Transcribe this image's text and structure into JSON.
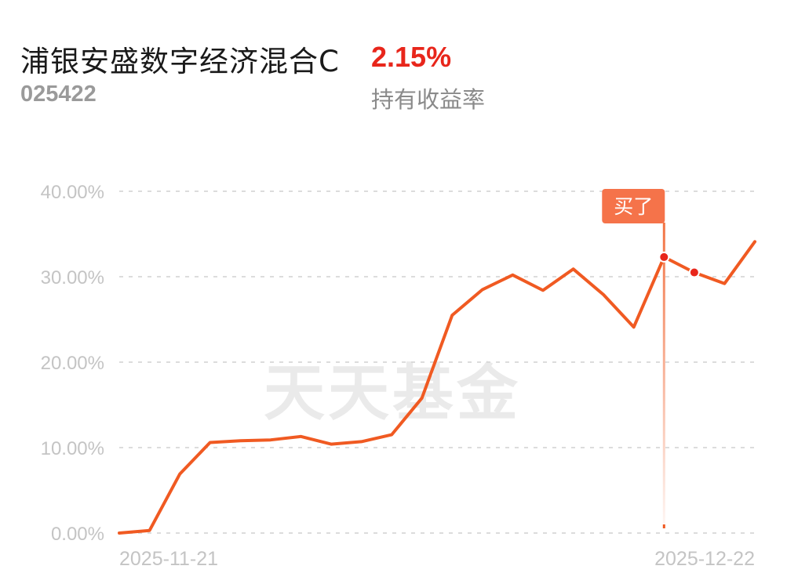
{
  "header": {
    "fund_name": "浦银安盛数字经济混合C",
    "fund_code": "025422",
    "holding_return": "2.15%",
    "holding_return_label": "持有收益率"
  },
  "watermark": "天天基金",
  "colors": {
    "line": "#f05a22",
    "return_red": "#e8261b",
    "marker_bg": "#f5734a"
  },
  "chart_data": {
    "type": "line",
    "title": "",
    "xlabel": "",
    "ylabel": "",
    "ylim": [
      0,
      40
    ],
    "yticks": [
      "0.00%",
      "10.00%",
      "20.00%",
      "30.00%",
      "40.00%"
    ],
    "grid": true,
    "x_labels": [
      "2025-11-21",
      "2025-12-22"
    ],
    "series": [
      {
        "values": [
          0.0,
          0.3,
          6.9,
          10.6,
          10.8,
          10.9,
          11.3,
          10.4,
          10.7,
          11.5,
          15.8,
          25.5,
          28.5,
          30.2,
          28.4,
          30.9,
          27.9,
          24.1,
          32.3,
          30.5,
          29.2,
          34.1
        ]
      }
    ],
    "annotations": [
      {
        "label": "买了",
        "index": 18
      }
    ],
    "highlighted_points": [
      18,
      19
    ]
  }
}
